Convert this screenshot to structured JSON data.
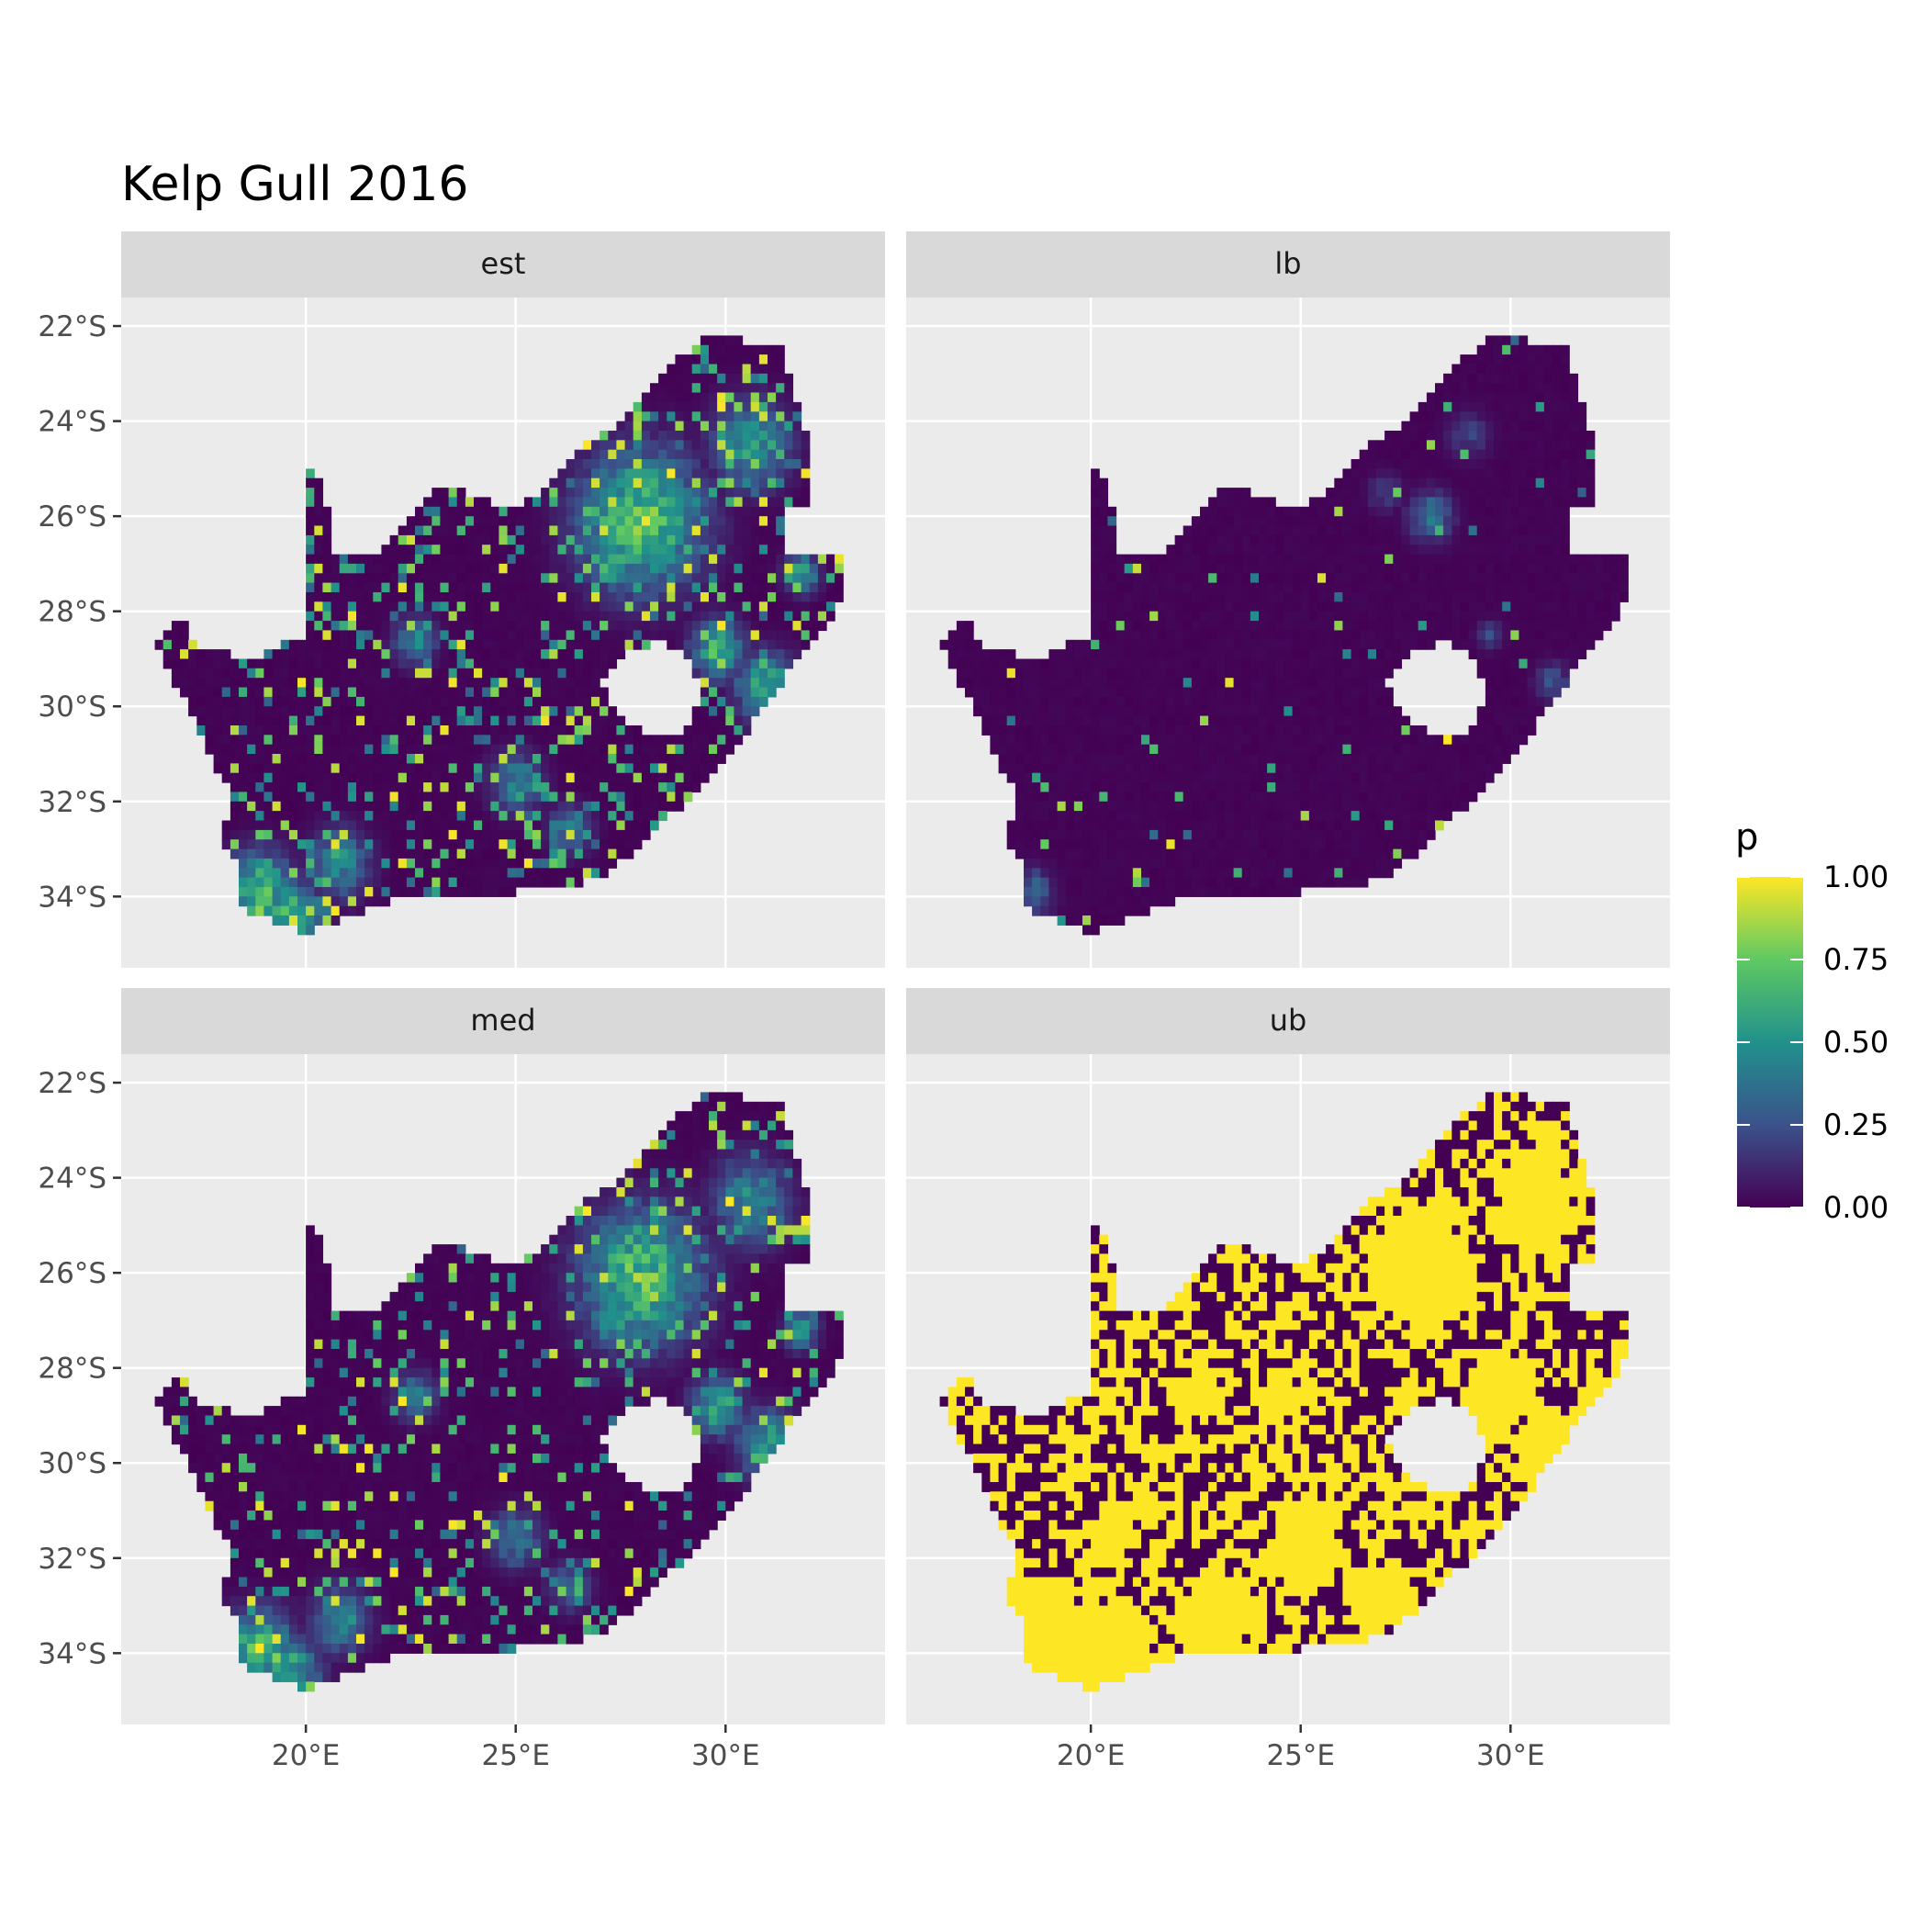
{
  "title": "Kelp Gull 2016",
  "facets": [
    {
      "label": "est",
      "key": "est"
    },
    {
      "label": "lb",
      "key": "lb"
    },
    {
      "label": "med",
      "key": "med"
    },
    {
      "label": "ub",
      "key": "ub"
    }
  ],
  "x_axis": {
    "ticks": [
      20,
      25,
      30
    ],
    "tick_labels": [
      "20°E",
      "25°E",
      "30°E"
    ],
    "range": [
      15.6,
      33.8
    ]
  },
  "y_axis": {
    "ticks": [
      -22,
      -24,
      -26,
      -28,
      -30,
      -32,
      -34
    ],
    "tick_labels": [
      "22°S",
      "24°S",
      "26°S",
      "28°S",
      "30°S",
      "32°S",
      "34°S"
    ],
    "range": [
      -35.5,
      -21.4
    ]
  },
  "legend": {
    "title": "p",
    "labels": [
      "1.00",
      "0.75",
      "0.50",
      "0.25",
      "0.00"
    ],
    "values": [
      1.0,
      0.75,
      0.5,
      0.25,
      0.0
    ],
    "palette": [
      "#440154",
      "#3b528b",
      "#21918c",
      "#5ec962",
      "#fde725"
    ]
  },
  "colors": {
    "panel_background": "#ebebeb",
    "grid": "#ffffff",
    "strip_background": "#d9d9d9",
    "low": "#440154",
    "high": "#fde725",
    "lesotho_hole": "#ebebeb"
  },
  "outlines": {
    "south_africa": [
      [
        16.4,
        -28.6
      ],
      [
        17.0,
        -28.1
      ],
      [
        17.4,
        -28.7
      ],
      [
        18.2,
        -28.9
      ],
      [
        19.0,
        -28.9
      ],
      [
        19.9,
        -28.5
      ],
      [
        20.0,
        -24.8
      ],
      [
        20.4,
        -25.4
      ],
      [
        20.7,
        -26.8
      ],
      [
        21.7,
        -26.8
      ],
      [
        22.6,
        -26.0
      ],
      [
        23.2,
        -25.3
      ],
      [
        23.8,
        -25.5
      ],
      [
        24.7,
        -25.8
      ],
      [
        25.6,
        -25.6
      ],
      [
        26.5,
        -24.6
      ],
      [
        27.2,
        -24.2
      ],
      [
        28.0,
        -23.4
      ],
      [
        29.0,
        -22.6
      ],
      [
        29.6,
        -22.2
      ],
      [
        31.3,
        -22.4
      ],
      [
        31.6,
        -23.3
      ],
      [
        32.0,
        -24.5
      ],
      [
        32.0,
        -25.8
      ],
      [
        31.4,
        -25.8
      ],
      [
        31.3,
        -26.8
      ],
      [
        32.1,
        -26.7
      ],
      [
        32.9,
        -26.9
      ],
      [
        32.6,
        -28.2
      ],
      [
        31.8,
        -28.9
      ],
      [
        31.0,
        -29.9
      ],
      [
        30.0,
        -31.2
      ],
      [
        28.9,
        -32.1
      ],
      [
        28.0,
        -32.9
      ],
      [
        27.0,
        -33.6
      ],
      [
        26.0,
        -33.8
      ],
      [
        25.0,
        -33.9
      ],
      [
        24.0,
        -34.1
      ],
      [
        23.0,
        -33.9
      ],
      [
        22.0,
        -34.1
      ],
      [
        21.0,
        -34.4
      ],
      [
        20.0,
        -34.8
      ],
      [
        19.4,
        -34.6
      ],
      [
        18.8,
        -34.4
      ],
      [
        18.4,
        -34.2
      ],
      [
        18.3,
        -33.2
      ],
      [
        17.9,
        -32.7
      ],
      [
        18.3,
        -32.0
      ],
      [
        17.8,
        -31.2
      ],
      [
        17.2,
        -30.0
      ],
      [
        16.7,
        -29.2
      ]
    ],
    "lesotho": [
      [
        27.0,
        -29.5
      ],
      [
        27.6,
        -28.9
      ],
      [
        28.5,
        -28.6
      ],
      [
        29.2,
        -29.0
      ],
      [
        29.4,
        -29.9
      ],
      [
        28.9,
        -30.6
      ],
      [
        28.1,
        -30.6
      ],
      [
        27.4,
        -30.2
      ]
    ]
  },
  "hotspots": {
    "est": [
      [
        28.0,
        -26.1,
        1.4,
        0.95
      ],
      [
        29.8,
        -28.8,
        0.6,
        0.8
      ],
      [
        31.0,
        -29.6,
        0.7,
        0.75
      ],
      [
        18.9,
        -33.9,
        0.8,
        0.9
      ],
      [
        19.6,
        -34.4,
        0.7,
        0.85
      ],
      [
        22.6,
        -28.6,
        0.5,
        0.55
      ],
      [
        25.0,
        -31.6,
        0.6,
        0.55
      ],
      [
        30.6,
        -24.5,
        0.9,
        0.65
      ],
      [
        20.8,
        -33.3,
        0.7,
        0.6
      ],
      [
        27.3,
        -27.0,
        0.5,
        0.8
      ],
      [
        31.8,
        -27.2,
        0.4,
        0.7
      ],
      [
        26.3,
        -32.6,
        0.5,
        0.5
      ]
    ],
    "lb": [
      [
        28.1,
        -26.0,
        0.5,
        0.5
      ],
      [
        27.0,
        -25.5,
        0.4,
        0.25
      ],
      [
        29.0,
        -24.3,
        0.5,
        0.25
      ],
      [
        18.6,
        -33.9,
        0.5,
        0.4
      ],
      [
        31.0,
        -29.5,
        0.4,
        0.35
      ],
      [
        29.5,
        -28.5,
        0.3,
        0.3
      ]
    ],
    "med": [
      [
        28.0,
        -26.1,
        1.4,
        0.9
      ],
      [
        29.8,
        -28.8,
        0.6,
        0.75
      ],
      [
        31.0,
        -29.6,
        0.7,
        0.7
      ],
      [
        18.9,
        -33.9,
        0.8,
        0.85
      ],
      [
        19.6,
        -34.4,
        0.7,
        0.8
      ],
      [
        22.6,
        -28.6,
        0.5,
        0.5
      ],
      [
        25.0,
        -31.6,
        0.6,
        0.5
      ],
      [
        30.6,
        -24.5,
        0.9,
        0.6
      ],
      [
        20.8,
        -33.3,
        0.7,
        0.55
      ],
      [
        27.3,
        -27.0,
        0.5,
        0.75
      ],
      [
        31.8,
        -27.2,
        0.4,
        0.65
      ],
      [
        26.3,
        -32.6,
        0.5,
        0.45
      ]
    ],
    "ub": [
      [
        27.9,
        -26.0,
        1.6,
        1.0
      ],
      [
        29.8,
        -28.5,
        1.0,
        1.0
      ],
      [
        31.0,
        -29.8,
        1.0,
        1.0
      ],
      [
        18.9,
        -33.5,
        1.3,
        1.0
      ],
      [
        20.5,
        -34.0,
        1.2,
        1.0
      ],
      [
        22.6,
        -28.6,
        0.8,
        0.9
      ],
      [
        25.0,
        -31.8,
        1.2,
        0.9
      ],
      [
        30.6,
        -24.5,
        1.2,
        0.95
      ],
      [
        23.0,
        -33.3,
        1.3,
        0.85
      ],
      [
        26.8,
        -32.8,
        1.0,
        0.85
      ],
      [
        20.5,
        -31.5,
        1.0,
        0.7
      ],
      [
        24.8,
        -28.6,
        1.0,
        0.6
      ]
    ]
  },
  "base_level": {
    "est": 0.18,
    "lb": 0.02,
    "med": 0.15,
    "ub": 0.55
  }
}
